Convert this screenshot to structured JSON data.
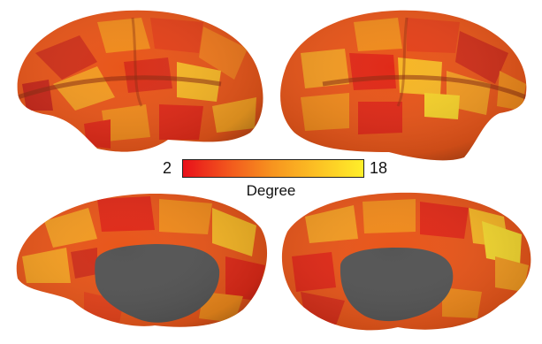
{
  "colorbar": {
    "min_label": "2",
    "max_label": "18",
    "title": "Degree",
    "colors": [
      "#e8101a",
      "#f2561d",
      "#f7951f",
      "#fcc224",
      "#ffef2a"
    ]
  },
  "views": [
    {
      "name": "left-lateral"
    },
    {
      "name": "right-lateral"
    },
    {
      "name": "left-medial"
    },
    {
      "name": "right-medial"
    }
  ],
  "palette": {
    "base": "#e8561a",
    "dark_red": "#c8281a",
    "red": "#e02a18",
    "orange": "#f08a1c",
    "yellow": "#f6c020",
    "medial_wall": "#555555"
  }
}
